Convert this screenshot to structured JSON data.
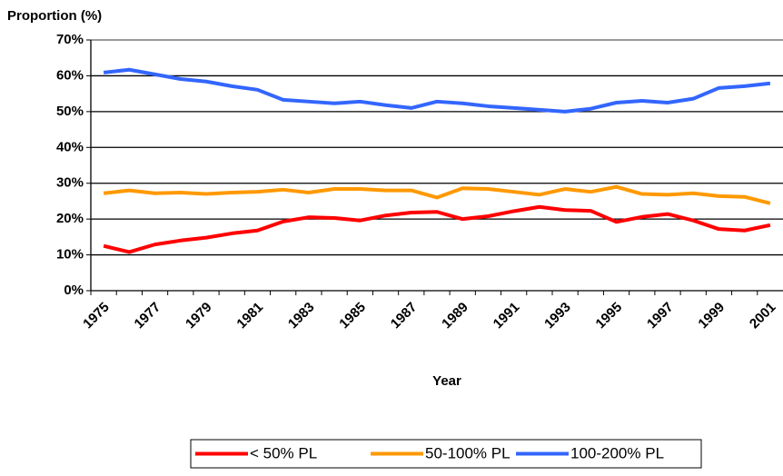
{
  "chart_data": {
    "type": "line",
    "y_label": "Proportion (%)",
    "x_label": "Year",
    "categories": [
      "1975",
      null,
      "1977",
      null,
      "1979",
      null,
      "1981",
      null,
      "1983",
      null,
      "1985",
      null,
      "1987",
      null,
      "1989",
      null,
      "1991",
      null,
      "1993",
      null,
      "1995",
      null,
      "1997",
      null,
      "1999",
      null,
      "2001"
    ],
    "ylim": [
      0,
      70
    ],
    "yticks": [
      {
        "value": 0,
        "label": "0%"
      },
      {
        "value": 10,
        "label": "10%"
      },
      {
        "value": 20,
        "label": "20%"
      },
      {
        "value": 30,
        "label": "30%"
      },
      {
        "value": 40,
        "label": "40%"
      },
      {
        "value": 50,
        "label": "50%"
      },
      {
        "value": 60,
        "label": "60%"
      },
      {
        "value": 70,
        "label": "70%"
      }
    ],
    "grid": true,
    "legend": "bottom",
    "series": [
      {
        "name": "< 50% PL",
        "color": "#ff0000",
        "values": [
          12.5,
          10.8,
          12.9,
          14.0,
          14.8,
          16.0,
          16.8,
          19.3,
          20.5,
          20.3,
          19.6,
          21.0,
          21.8,
          22.0,
          20.0,
          20.8,
          22.2,
          23.4,
          22.5,
          22.3,
          19.2,
          20.6,
          21.4,
          19.6,
          17.2,
          16.8,
          18.3
        ]
      },
      {
        "name": "50-100% PL",
        "color": "#ff9900",
        "values": [
          27.2,
          28.0,
          27.2,
          27.4,
          27.0,
          27.4,
          27.6,
          28.2,
          27.4,
          28.4,
          28.4,
          28.0,
          28.0,
          26.0,
          28.6,
          28.4,
          27.6,
          26.8,
          28.4,
          27.6,
          29.0,
          27.0,
          26.8,
          27.2,
          26.4,
          26.2,
          24.4
        ]
      },
      {
        "name": "100-200% PL",
        "color": "#3366ff",
        "values": [
          60.9,
          61.7,
          60.4,
          59.1,
          58.4,
          57.1,
          56.1,
          53.3,
          52.8,
          52.3,
          52.8,
          51.8,
          51.0,
          52.8,
          52.3,
          51.5,
          51.0,
          50.5,
          50.0,
          50.8,
          52.5,
          53.0,
          52.5,
          53.6,
          56.6,
          57.1,
          57.9
        ]
      }
    ]
  }
}
